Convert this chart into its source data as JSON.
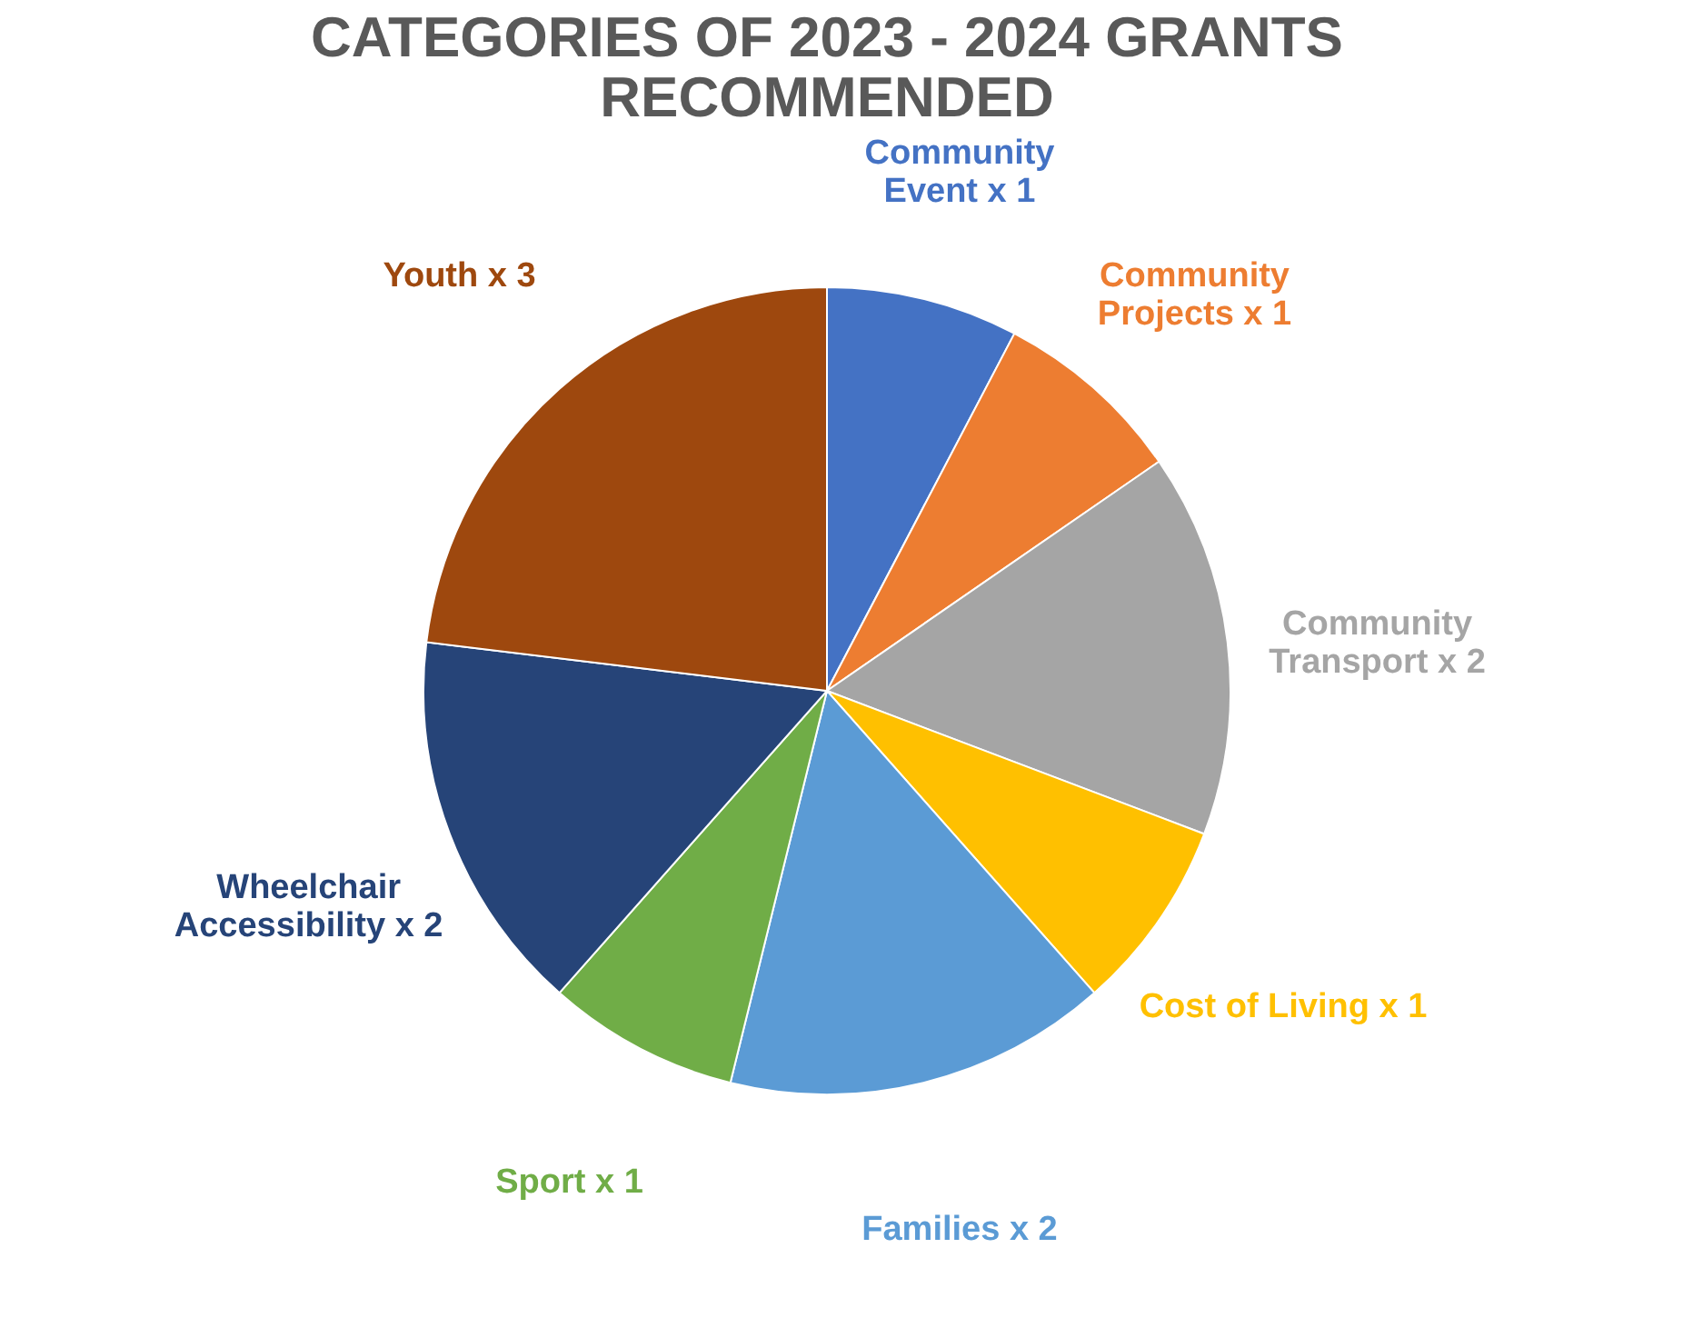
{
  "chart_data": {
    "type": "pie",
    "title": "CATEGORIES OF 2023 - 2024 GRANTS\nRECOMMENDED",
    "categories": [
      "Community\nEvent x 1",
      "Community\nProjects x 1",
      "Community\nTransport  x 2",
      "Cost of Living x 1",
      "Families x 2",
      "Sport x 1",
      "Wheelchair\nAccessibility x 2",
      "Youth x 3"
    ],
    "values": [
      1,
      1,
      2,
      1,
      2,
      1,
      2,
      3
    ],
    "colors": [
      "#4472c4",
      "#ed7d31",
      "#a5a5a5",
      "#ffc000",
      "#5b9bd5",
      "#70ad47",
      "#264478",
      "#9e480e"
    ],
    "legend": false
  }
}
